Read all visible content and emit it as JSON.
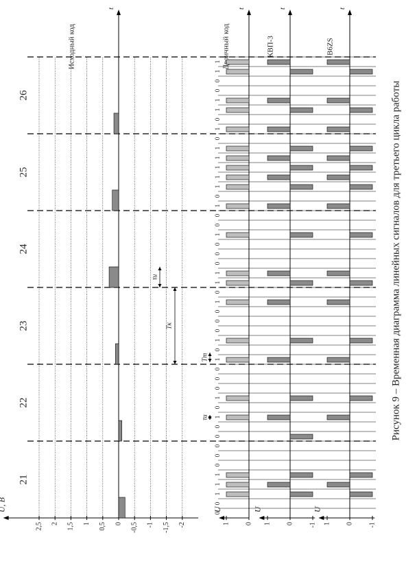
{
  "caption": "Рисунок 9 – Временная диаграмма линейных сигналов для третьего цикла работы",
  "chart_data": [
    {
      "type": "bar",
      "title": "Исходный код",
      "y_label": "U, В",
      "x_label": "t",
      "categories": [
        "21",
        "22",
        "23",
        "24",
        "25",
        "26"
      ],
      "values": [
        -0.2,
        -0.1,
        0.1,
        0.3,
        0.2,
        0.15
      ],
      "color": "#8a8a8a",
      "ylim": [
        -2.5,
        3.5
      ],
      "yticks": [
        {
          "value": 2.5,
          "label": "2,5"
        },
        2,
        {
          "value": 1.5,
          "label": "1,5"
        },
        1,
        {
          "value": 0.5,
          "label": "0,5"
        },
        0,
        {
          "value": -0.5,
          "label": "-0,5"
        },
        -1,
        {
          "value": -1.5,
          "label": "-1,5"
        },
        -2
      ],
      "grid": true,
      "annotations": [
        "τи",
        "Tк"
      ]
    },
    {
      "type": "pulse",
      "title": "Двоичный код",
      "y_label": "U",
      "x_label": "t",
      "color": "#bdbdbd",
      "values": [
        0,
        0,
        1,
        1,
        1,
        0,
        0,
        0,
        0,
        0,
        1,
        0,
        1,
        0,
        0,
        0,
        1,
        0,
        1,
        0,
        0,
        0,
        1,
        0,
        1,
        1,
        0,
        0,
        0,
        1,
        0,
        0,
        1,
        0,
        1,
        1,
        1,
        1,
        1,
        0,
        1,
        0,
        1,
        1,
        0,
        0,
        1,
        1
      ],
      "data_labels": true,
      "ylim": [
        0,
        1.15
      ],
      "yticks": [
        1,
        0
      ],
      "annotations": [
        "τи",
        "Tт"
      ]
    },
    {
      "type": "pulse",
      "title": "КВП-3",
      "y_label": "U",
      "x_label": "t",
      "color": "#8a8a8a",
      "values": [
        0,
        0,
        -1,
        1,
        -1,
        0,
        0,
        0,
        -1,
        0,
        1,
        0,
        -1,
        0,
        0,
        0,
        1,
        0,
        -1,
        0,
        0,
        0,
        1,
        0,
        -1,
        1,
        0,
        0,
        0,
        -1,
        0,
        0,
        1,
        0,
        -1,
        1,
        -1,
        1,
        -1,
        0,
        1,
        0,
        -1,
        1,
        0,
        0,
        -1,
        1
      ],
      "ylim": [
        -1.1,
        1.2
      ],
      "yticks": [
        1,
        0,
        -1
      ]
    },
    {
      "type": "pulse",
      "title": "B6ZS",
      "y_label": "U",
      "x_label": "t",
      "color": "#8a8a8a",
      "values": [
        0,
        0,
        -1,
        1,
        -1,
        0,
        0,
        0,
        0,
        0,
        1,
        0,
        -1,
        0,
        0,
        0,
        1,
        0,
        -1,
        0,
        0,
        0,
        1,
        0,
        -1,
        1,
        0,
        0,
        0,
        -1,
        0,
        0,
        1,
        0,
        -1,
        1,
        -1,
        1,
        -1,
        0,
        1,
        0,
        -1,
        1,
        0,
        0,
        -1,
        1
      ],
      "ylim": [
        -1.1,
        1.2
      ],
      "yticks": [
        1,
        0,
        -1
      ]
    }
  ]
}
